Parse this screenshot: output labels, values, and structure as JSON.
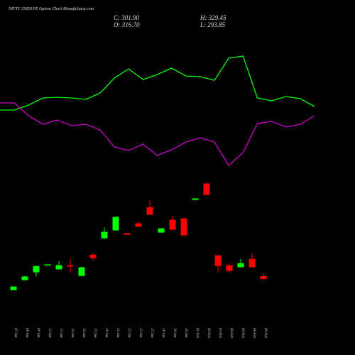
{
  "chart_data": {
    "type": "candlestick",
    "title": "NIFTY 25850  PE Option  Chart MunafaSutra.com",
    "info": [
      "C: 301.90",
      "O: 316.70",
      "H: 329.45",
      "L: 293.85"
    ],
    "categories": [
      "07 Jan",
      "08 Jan",
      "09 Jan",
      "12 Jan",
      "13 Jan",
      "14 Jan",
      "16 Jan",
      "19 Jan",
      "20 Jan",
      "21 Jan",
      "22 Jan",
      "23 Jan",
      "27 Jan",
      "28 Jan",
      "29 Jan",
      "30 Jan",
      "01 Feb",
      "02 Feb",
      "03 Feb",
      "04 Feb",
      "05 Feb",
      "06 Feb",
      "09 Feb"
    ],
    "open": [
      244,
      296,
      337,
      377,
      352,
      374,
      318,
      429,
      514,
      555,
      541,
      592,
      677,
      544,
      611,
      618,
      714,
      800,
      426,
      374,
      363,
      407,
      316.7
    ],
    "high": [
      263,
      318,
      370,
      378,
      396,
      407,
      366,
      437,
      570,
      626,
      541,
      603,
      714,
      566,
      626,
      618,
      722,
      800,
      426,
      385,
      407,
      437,
      329.45
    ],
    "low": [
      244,
      296,
      315,
      377,
      352,
      333,
      315,
      396,
      511,
      555,
      533,
      574,
      637,
      544,
      559,
      529,
      714,
      740,
      337,
      333,
      363,
      363,
      293.85
    ],
    "close": [
      263,
      315,
      370,
      378,
      374,
      367,
      363,
      411,
      548,
      626,
      533,
      574,
      637,
      566,
      559,
      529,
      722,
      740,
      370,
      344,
      385,
      363,
      301.9
    ],
    "up_color": "#00ff00",
    "down_color": "#ff0000",
    "ylim": [
      202,
      831
    ],
    "series": [
      {
        "color": "#00ff00",
        "values": [
          95,
          95,
          102,
          112,
          113,
          112,
          110,
          119,
          140,
          153,
          138,
          145,
          154,
          143,
          142,
          137,
          168,
          171,
          112,
          108,
          114,
          111,
          100
        ]
      },
      {
        "color": "#cc00cc",
        "values": [
          105,
          105,
          87,
          75,
          81,
          73,
          75,
          67,
          43,
          38,
          47,
          31,
          39,
          50,
          56,
          50,
          17,
          35,
          76,
          79,
          71,
          75,
          87
        ]
      }
    ],
    "y2lim": [
      0,
      200
    ]
  }
}
